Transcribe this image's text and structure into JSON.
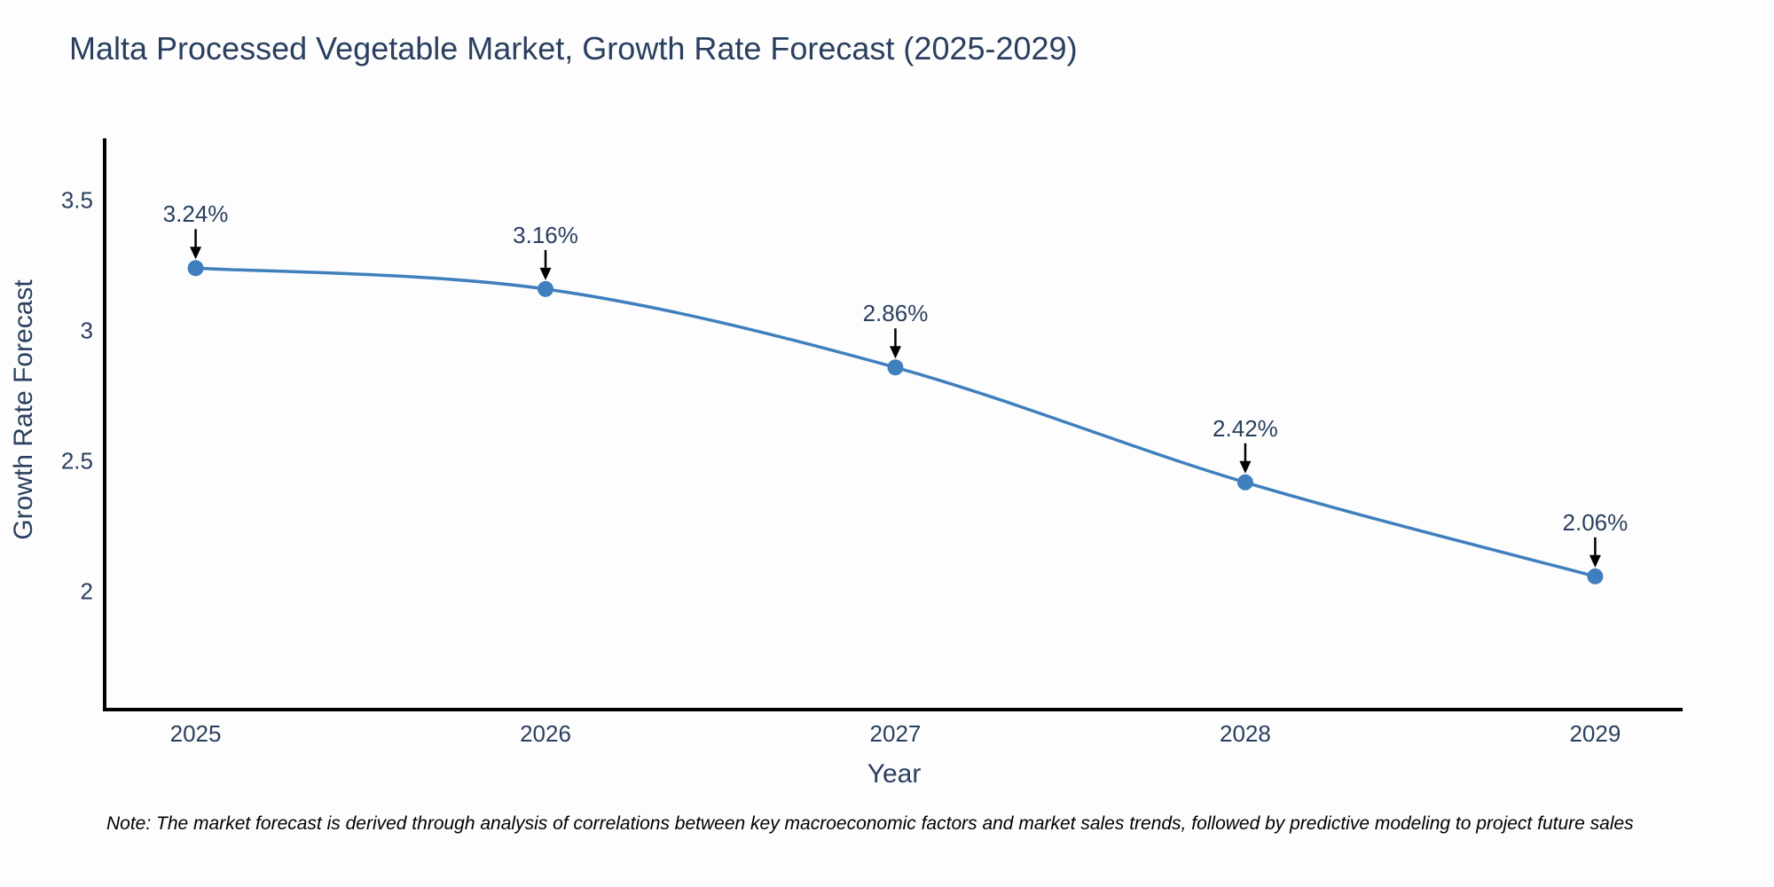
{
  "title": "Malta Processed Vegetable Market, Growth Rate Forecast (2025-2029)",
  "note": "Note: The market forecast is derived through analysis of correlations between key macroeconomic factors and market sales trends, followed by predictive modeling to project future sales",
  "chart_data": {
    "type": "line",
    "title": "Malta Processed Vegetable Market, Growth Rate Forecast (2025-2029)",
    "xlabel": "Year",
    "ylabel": "Growth Rate Forecast",
    "x": [
      2025,
      2026,
      2027,
      2028,
      2029
    ],
    "series": [
      {
        "name": "Growth Rate Forecast",
        "values": [
          3.24,
          3.16,
          2.86,
          2.42,
          2.06
        ]
      }
    ],
    "point_labels": [
      "3.24%",
      "3.16%",
      "2.86%",
      "2.42%",
      "2.06%"
    ],
    "xticks": [
      2025,
      2026,
      2027,
      2028,
      2029
    ],
    "xtick_labels": [
      "2025",
      "2026",
      "2027",
      "2028",
      "2029"
    ],
    "yticks": [
      2,
      2.5,
      3,
      3.5
    ],
    "ytick_labels": [
      "2",
      "2.5",
      "3",
      "3.5"
    ],
    "xlim": [
      2024.74,
      2029.25
    ],
    "ylim": [
      1.55,
      3.73
    ],
    "grid": false,
    "legend_position": "none",
    "line_shape": "spline",
    "line_color": "#3f7fbd",
    "marker_color": "#3f7fbd",
    "axis_color": "#000000",
    "text_color": "#2a3f5f",
    "annotation_arrow_color": "#000000",
    "background_color": "#fdfdfd"
  }
}
